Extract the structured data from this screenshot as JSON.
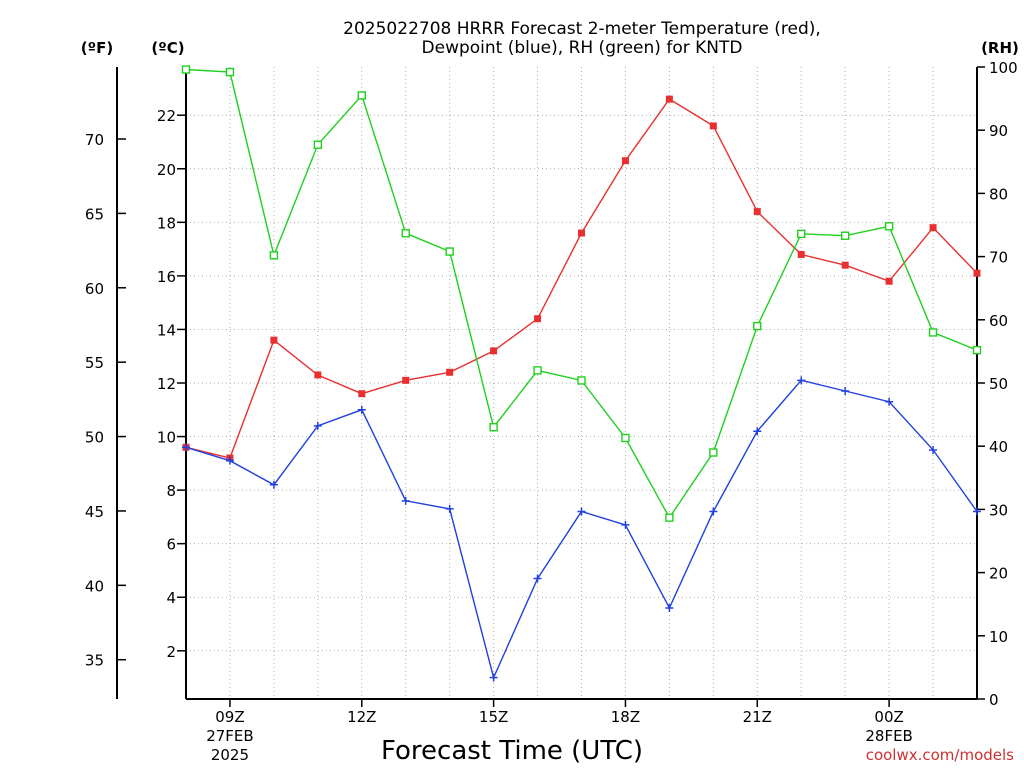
{
  "chart_data": {
    "type": "line",
    "title_lines": [
      "2025022708 HRRR Forecast 2-meter Temperature (red),",
      "Dewpoint (blue), RH (green) for KNTD"
    ],
    "xlabel": "Forecast Time (UTC)",
    "credit": "coolwx.com/models",
    "units": {
      "fahrenheit": "(ºF)",
      "celsius": "(ºC)",
      "rh": "(RH)"
    },
    "x_hours": [
      8,
      9,
      10,
      11,
      12,
      13,
      14,
      15,
      16,
      17,
      18,
      19,
      20,
      21,
      22,
      23,
      24,
      25,
      26
    ],
    "x_ticks": [
      {
        "hour": 9,
        "lines": [
          "09Z",
          "27FEB",
          "2025"
        ]
      },
      {
        "hour": 12,
        "lines": [
          "12Z"
        ]
      },
      {
        "hour": 15,
        "lines": [
          "15Z"
        ]
      },
      {
        "hour": 18,
        "lines": [
          "18Z"
        ]
      },
      {
        "hour": 21,
        "lines": [
          "21Z"
        ]
      },
      {
        "hour": 24,
        "lines": [
          "00Z",
          "28FEB"
        ]
      }
    ],
    "xlim": [
      8,
      26
    ],
    "celsius_axis": {
      "ylim": [
        0.2,
        23.8
      ],
      "ticks": [
        2,
        4,
        6,
        8,
        10,
        12,
        14,
        16,
        18,
        20,
        22
      ]
    },
    "fahrenheit_axis": {
      "ticks": [
        35,
        40,
        45,
        50,
        55,
        60,
        65,
        70
      ]
    },
    "rh_axis": {
      "ylim": [
        0,
        100
      ],
      "ticks": [
        0,
        10,
        20,
        30,
        40,
        50,
        60,
        70,
        80,
        90,
        100
      ]
    },
    "grid": true,
    "series": [
      {
        "axis": "celsius",
        "color": "#e83030",
        "marker": "filled-square",
        "values": [
          9.6,
          9.2,
          13.6,
          12.3,
          11.6,
          12.1,
          12.4,
          13.2,
          14.4,
          17.6,
          20.3,
          22.6,
          21.6,
          18.4,
          16.8,
          16.4,
          15.8,
          17.8,
          16.1
        ]
      },
      {
        "axis": "celsius",
        "color": "#2040e0",
        "marker": "plus",
        "values": [
          9.6,
          9.1,
          8.2,
          10.4,
          11.0,
          7.6,
          7.3,
          1.0,
          4.7,
          7.2,
          6.7,
          3.6,
          7.2,
          10.2,
          12.1,
          11.7,
          11.3,
          9.5,
          7.2
        ]
      },
      {
        "axis": "rh",
        "color": "#20d020",
        "marker": "open-square",
        "values": [
          99.6,
          99.2,
          70.2,
          87.7,
          95.5,
          73.7,
          70.8,
          43.0,
          52.0,
          50.4,
          41.3,
          28.7,
          39.0,
          59.0,
          73.6,
          73.3,
          74.8,
          58.0,
          55.2
        ]
      }
    ]
  }
}
